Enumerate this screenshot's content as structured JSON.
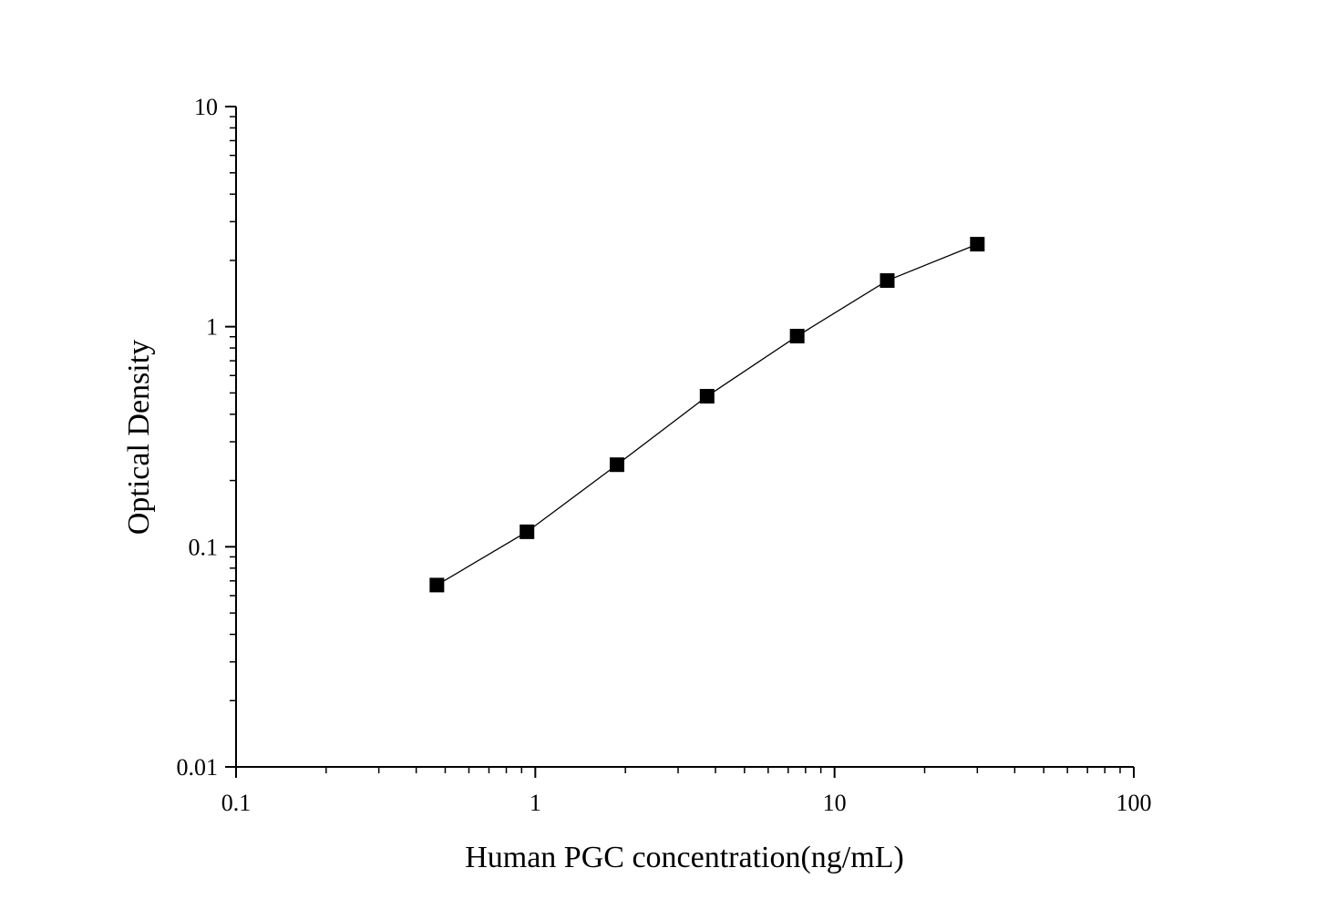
{
  "chart_data": {
    "type": "line",
    "title": "",
    "xlabel": "Human PGC concentration(ng/mL)",
    "ylabel": "Optical Density",
    "xscale": "log",
    "yscale": "log",
    "xlim": [
      0.1,
      100
    ],
    "ylim": [
      0.01,
      10
    ],
    "xticks": [
      "0.1",
      "1",
      "10",
      "100"
    ],
    "yticks": [
      "0.01",
      "0.1",
      "1",
      "10"
    ],
    "grid": false,
    "marker": "square",
    "color": "#000000",
    "series": [
      {
        "x": [
          0.469,
          0.938,
          1.875,
          3.75,
          7.5,
          15,
          30
        ],
        "y": [
          0.067,
          0.117,
          0.236,
          0.483,
          0.906,
          1.62,
          2.37
        ]
      }
    ]
  }
}
